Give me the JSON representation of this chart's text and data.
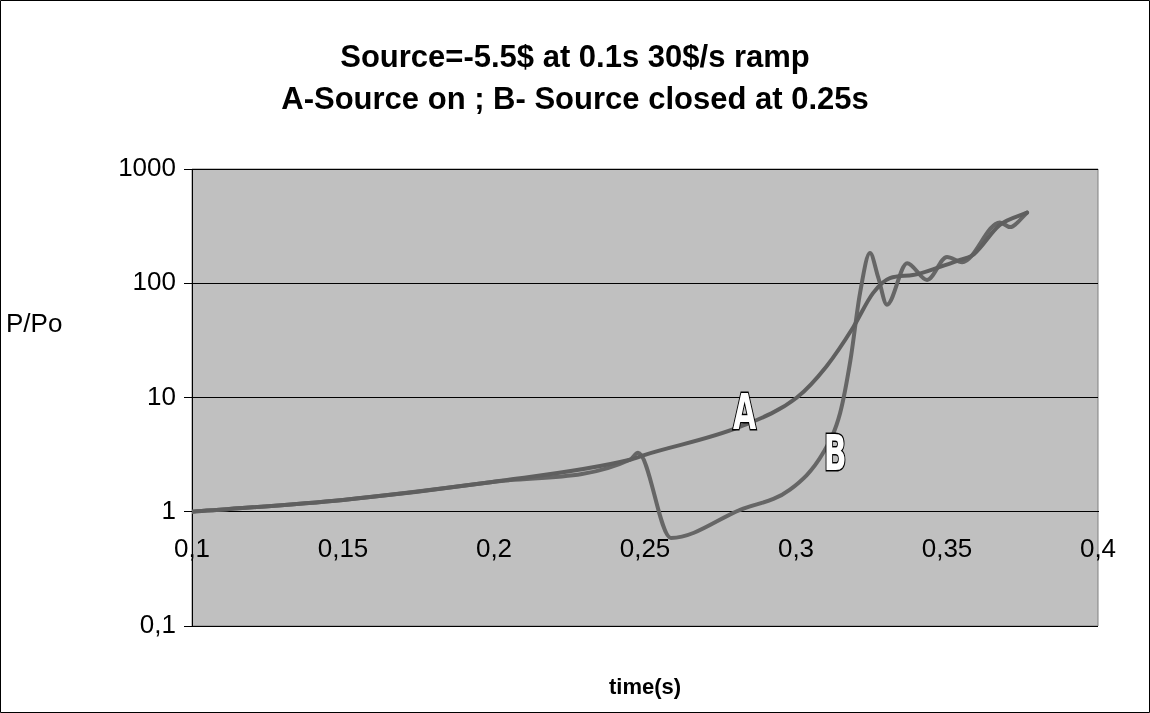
{
  "chart_data": {
    "type": "line",
    "title": "Source=-5.5$ at 0.1s 30$/s ramp\nA-Source on ; B- Source closed at 0.25s",
    "xlabel": "time(s)",
    "ylabel": "P/Po",
    "log": "y",
    "grid": "y",
    "legend": false,
    "marker": "none",
    "line_style": "solid",
    "xlim": [
      0.1,
      0.4
    ],
    "xticks": [
      {
        "value": 0.1,
        "label": "0,1"
      },
      {
        "value": 0.15,
        "label": "0,15"
      },
      {
        "value": 0.2,
        "label": "0,2"
      },
      {
        "value": 0.25,
        "label": "0,25"
      },
      {
        "value": 0.3,
        "label": "0,3"
      },
      {
        "value": 0.35,
        "label": "0,35"
      },
      {
        "value": 0.4,
        "label": "0,4"
      }
    ],
    "ylim": [
      0.1,
      1000
    ],
    "yticks": [
      {
        "value": 0.1,
        "label": "0,1"
      },
      1,
      10,
      100,
      1000
    ],
    "series": [
      {
        "color": "#5f5f5f",
        "x": [
          0.1,
          0.15,
          0.2,
          0.245,
          0.25,
          0.2815,
          0.3003,
          0.31,
          0.3189,
          0.3255,
          0.3311,
          0.3387,
          0.3477,
          0.3543,
          0.3586,
          0.3675,
          0.3765
        ],
        "values": [
          1,
          1.27,
          1.83,
          2.85,
          3.15,
          5.55,
          10,
          18.6,
          41,
          82,
          111,
          118,
          139,
          160,
          177,
          324,
          415
        ]
      },
      {
        "color": "#666666",
        "x": [
          0.1,
          0.15,
          0.2,
          0.245,
          0.2477,
          0.2586,
          0.2815,
          0.298,
          0.309,
          0.3146,
          0.318,
          0.3212,
          0.3245,
          0.3272,
          0.3301,
          0.3368,
          0.3434,
          0.35,
          0.355,
          0.3675,
          0.3709,
          0.3765
        ],
        "values": [
          1,
          1.27,
          1.83,
          2.85,
          3.28,
          0.59,
          1.04,
          1.56,
          3.28,
          7.3,
          21,
          82,
          184,
          113,
          65,
          150,
          107,
          170,
          153,
          341,
          310,
          415
        ]
      }
    ],
    "annotations": [
      "A",
      "B"
    ]
  }
}
